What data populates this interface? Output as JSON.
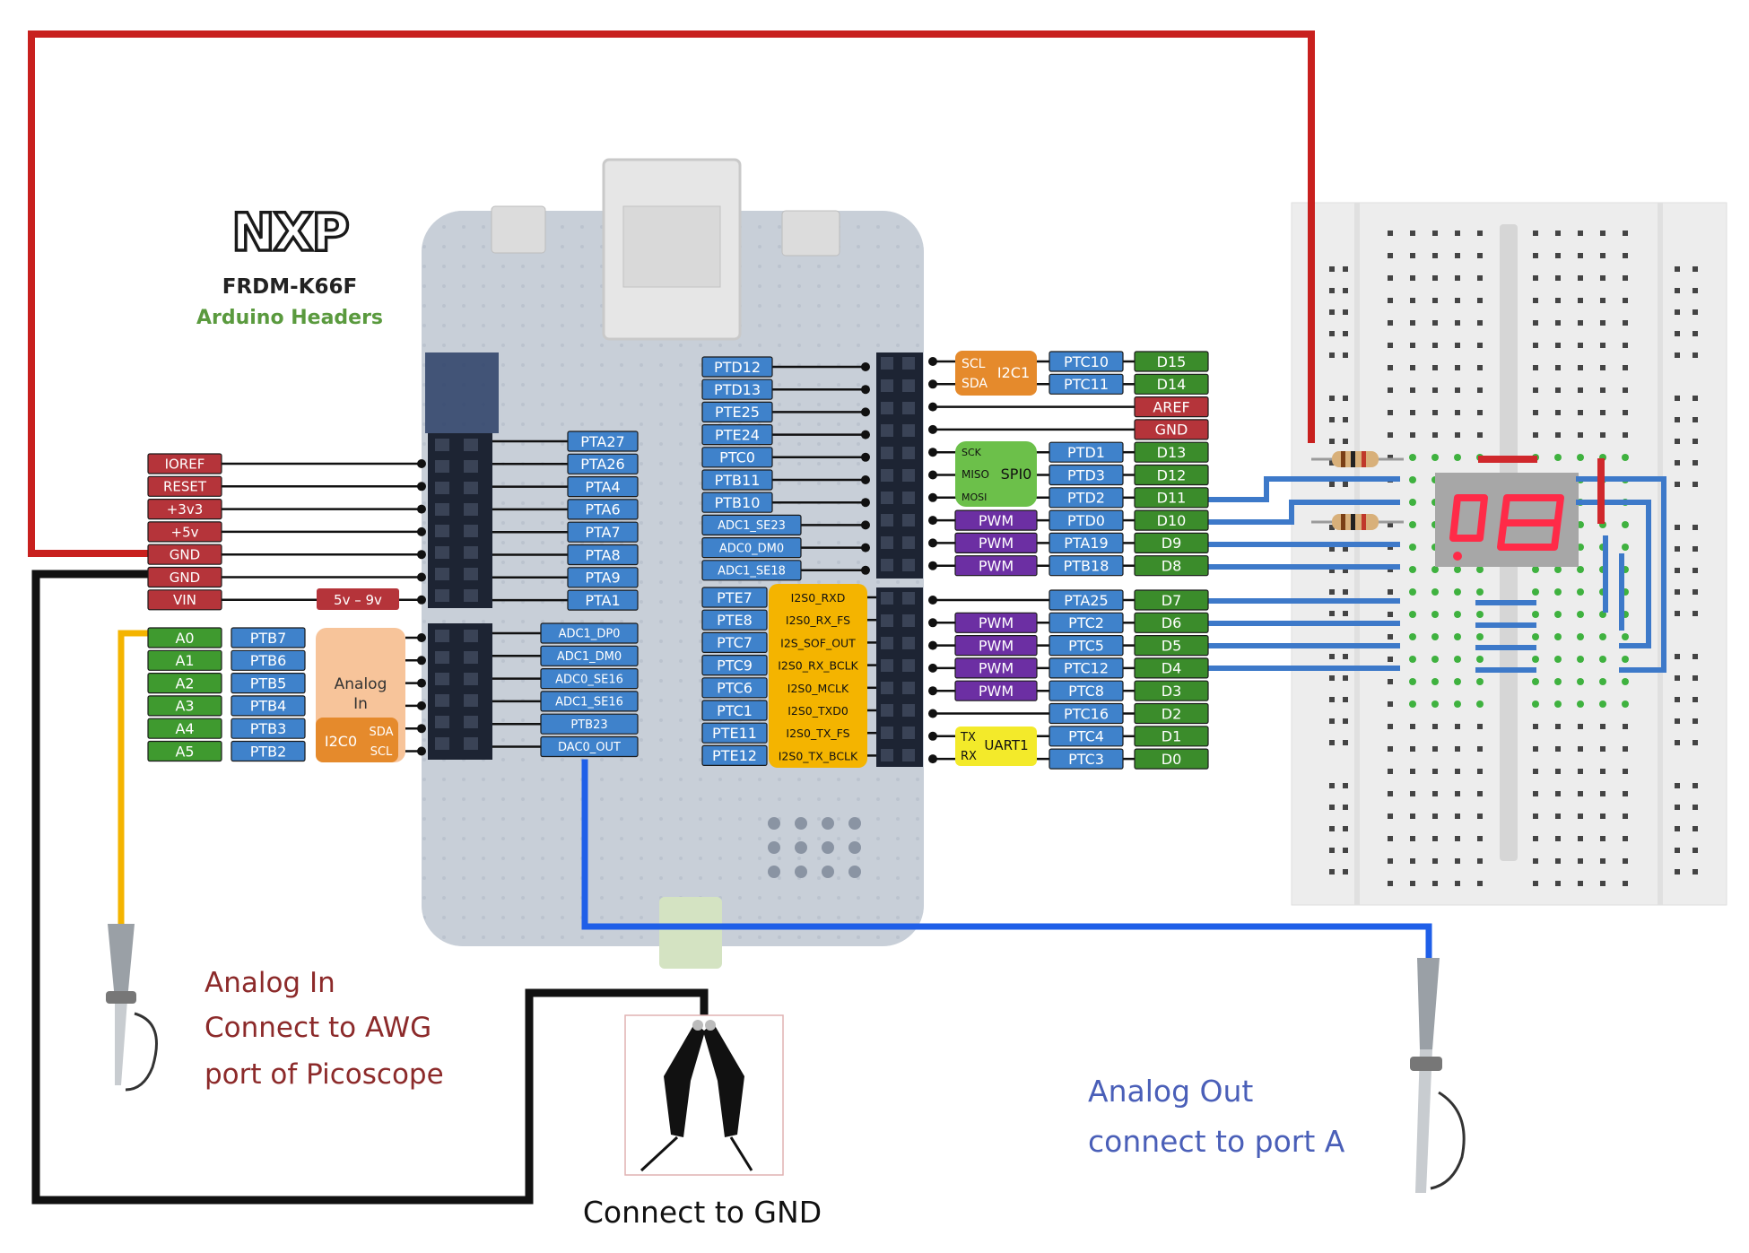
{
  "colors": {
    "power": "#b5343a",
    "analog": "#3f9a2f",
    "digital": "#3b8c2b",
    "port": "#3f82cb",
    "orange": "#e58a2c",
    "amber": "#f4b400",
    "purple": "#6c2fa3",
    "yellow": "#f3ea2a",
    "green": "#6cc04a",
    "wire_red": "#c8201e",
    "wire_black": "#111111",
    "wire_blue": "#1f5fe8",
    "wire_yellow": "#f4b400",
    "title_green": "#5a9a3e",
    "maroon": "#8c2a2a",
    "navy": "#4a5fb8"
  },
  "branding": {
    "logo": "NXP",
    "board": "FRDM-K66F",
    "subtitle": "Arduino Headers"
  },
  "left_header": {
    "power_pins": [
      "IOREF",
      "RESET",
      "+3v3",
      "+5v",
      "GND",
      "GND",
      "VIN"
    ],
    "vin_range": "5v – 9v",
    "analog_pins": [
      "A0",
      "A1",
      "A2",
      "A3",
      "A4",
      "A5"
    ],
    "analog_ports": [
      "PTB7",
      "PTB6",
      "PTB5",
      "PTB4",
      "PTB3",
      "PTB2"
    ],
    "analog_box": "Analog In",
    "i2c0": {
      "name": "I2C0",
      "sda": "SDA",
      "scl": "SCL"
    }
  },
  "inner_left": {
    "upper_ports": [
      "PTA27",
      "PTA26",
      "PTA4",
      "PTA6",
      "PTA7",
      "PTA8",
      "PTA9",
      "PTA1"
    ],
    "lower_ports": [
      "ADC1_DP0",
      "ADC1_DM0",
      "ADC0_SE16",
      "ADC1_SE16",
      "PTB23",
      "DAC0_OUT"
    ]
  },
  "inner_right": {
    "upper_ports": [
      "PTD12",
      "PTD13",
      "PTE25",
      "PTE24",
      "PTC0",
      "PTB11",
      "PTB10",
      "ADC1_SE23",
      "ADC0_DM0",
      "ADC1_SE18"
    ],
    "lower_ports": [
      "PTE7",
      "PTE8",
      "PTC7",
      "PTC9",
      "PTC6",
      "PTC1",
      "PTE11",
      "PTE12"
    ],
    "i2s_functions": [
      "I2S0_RXD",
      "I2S0_RX_FS",
      "I2S_SOF_OUT",
      "I2S0_RX_BCLK",
      "I2S0_MCLK",
      "I2S0_TXD0",
      "I2S0_TX_FS",
      "I2S0_TX_BCLK"
    ]
  },
  "right_header": {
    "digital": [
      "D15",
      "D14",
      "AREF",
      "GND",
      "D13",
      "D12",
      "D11",
      "D10",
      "D9",
      "D8",
      "D7",
      "D6",
      "D5",
      "D4",
      "D3",
      "D2",
      "D1",
      "D0"
    ],
    "ports": [
      "PTC10",
      "PTC11",
      "",
      "",
      "PTD1",
      "PTD3",
      "PTD2",
      "PTD0",
      "PTA19",
      "PTB18",
      "PTA25",
      "PTC2",
      "PTC5",
      "PTC12",
      "PTC8",
      "PTC16",
      "PTC4",
      "PTC3"
    ],
    "i2c1": {
      "name": "I2C1",
      "scl": "SCL",
      "sda": "SDA"
    },
    "spi0": {
      "name": "SPI0",
      "sck": "SCK",
      "miso": "MISO",
      "mosi": "MOSI"
    },
    "uart1": {
      "name": "UART1",
      "tx": "TX",
      "rx": "RX"
    },
    "pwm": "PWM"
  },
  "annotations": {
    "analog_in": [
      "Analog In",
      "Connect to AWG",
      "port of Picoscope"
    ],
    "analog_out": [
      "Analog Out",
      "connect to port A"
    ],
    "gnd": "Connect to GND"
  }
}
